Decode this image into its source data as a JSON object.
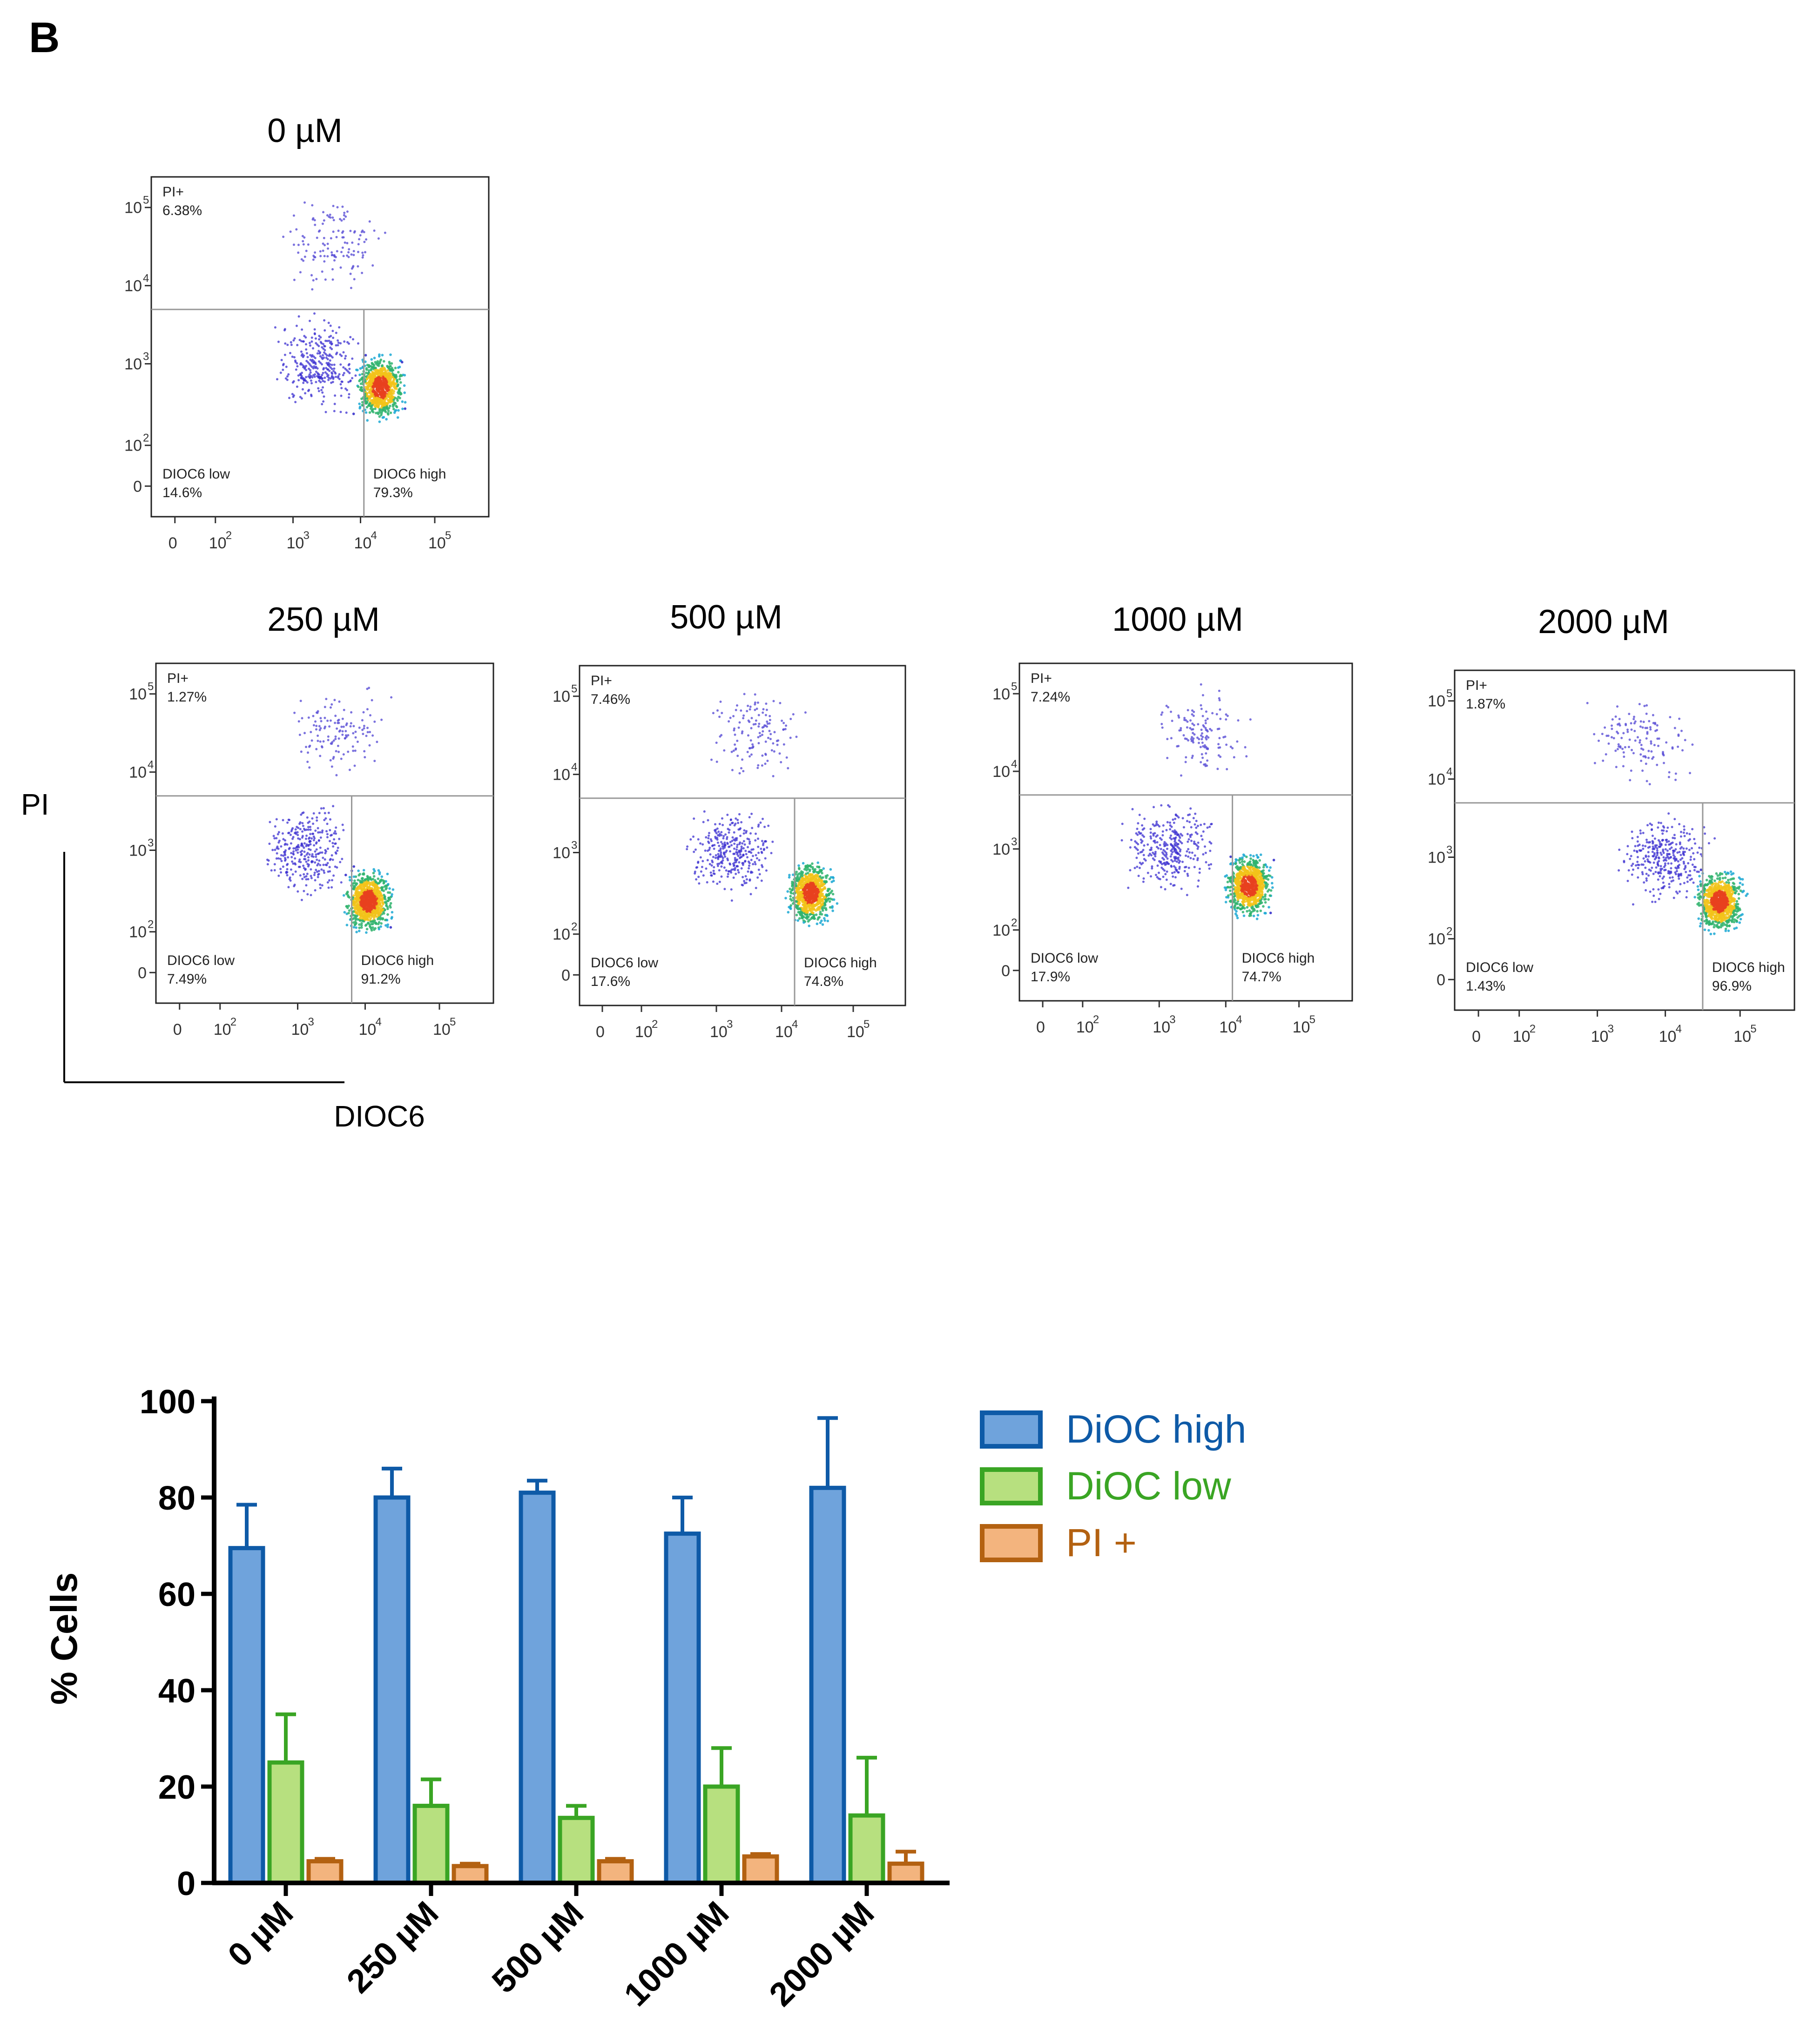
{
  "panel_letter": "B",
  "flow_axes": {
    "y_label": "PI",
    "x_label": "DIOC6"
  },
  "flow_panels": [
    {
      "title": "0 µM",
      "pi_plus": "6.38%",
      "dioc_low": "14.6%",
      "dioc_high": "79.3%"
    },
    {
      "title": "250 µM",
      "pi_plus": "1.27%",
      "dioc_low": "7.49%",
      "dioc_high": "91.2%"
    },
    {
      "title": "500 µM",
      "pi_plus": "7.46%",
      "dioc_low": "17.6%",
      "dioc_high": "74.8%"
    },
    {
      "title": "1000 µM",
      "pi_plus": "7.24%",
      "dioc_low": "17.9%",
      "dioc_high": "74.7%"
    },
    {
      "title": "2000 µM",
      "pi_plus": "1.87%",
      "dioc_low": "1.43%",
      "dioc_high": "96.9%"
    }
  ],
  "gate_names": {
    "pi_plus": "PI+",
    "dioc_low": "DIOC6 low",
    "dioc_high": "DIOC6 high"
  },
  "flow_ticks": {
    "x": [
      "0",
      "10",
      "10",
      "10",
      "10"
    ],
    "x_exp": [
      "",
      "2",
      "3",
      "4",
      "5"
    ],
    "y": [
      "10",
      "10",
      "10",
      "10",
      "0"
    ],
    "y_exp": [
      "5",
      "4",
      "3",
      "2",
      ""
    ]
  },
  "chart_data": {
    "type": "bar",
    "categories": [
      "0 µM",
      "250 µM",
      "500 µM",
      "1000 µM",
      "2000 µM"
    ],
    "series": [
      {
        "name": "DiOC high",
        "values": [
          69.5,
          80,
          81,
          72.5,
          82
        ],
        "err": [
          9,
          6,
          2.5,
          7.5,
          14.5
        ],
        "fill": "#6fa3dc",
        "stroke": "#0e5aa7"
      },
      {
        "name": "DiOC low",
        "values": [
          25,
          16,
          13.5,
          20,
          14
        ],
        "err": [
          10,
          5.5,
          2.5,
          8,
          12
        ],
        "fill": "#b7e07f",
        "stroke": "#3aa524"
      },
      {
        "name": "PI +",
        "values": [
          4.5,
          3.5,
          4.5,
          5.5,
          4
        ],
        "err": [
          0.5,
          0.5,
          0.5,
          0.5,
          2.5
        ],
        "fill": "#f3b47e",
        "stroke": "#b36111"
      }
    ],
    "title": "",
    "xlabel": "",
    "ylabel": "% Cells",
    "ylim": [
      0,
      100
    ],
    "yticks": [
      0,
      20,
      40,
      60,
      80,
      100
    ],
    "legend_position": "right"
  }
}
